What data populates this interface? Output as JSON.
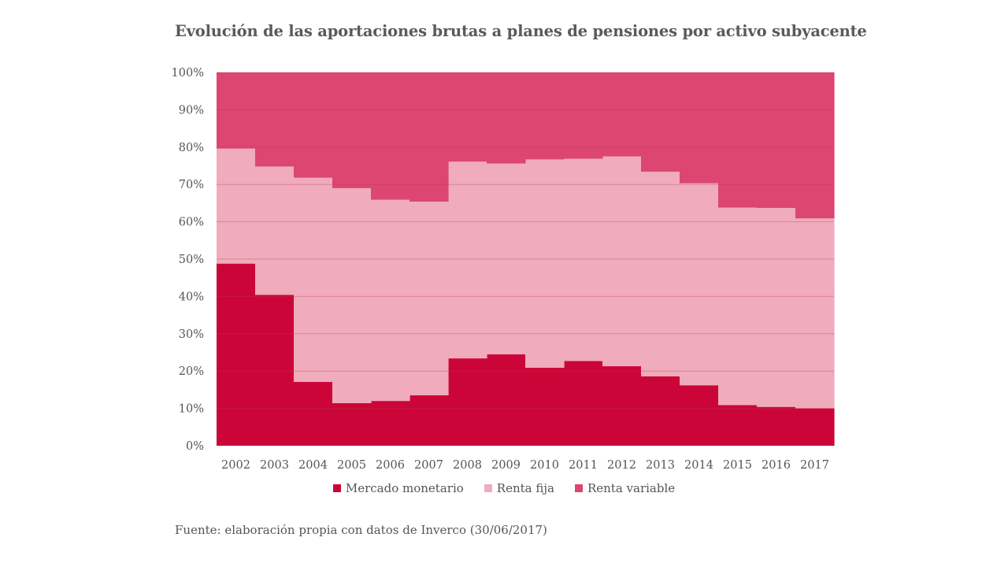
{
  "chart_data": {
    "type": "area",
    "stacked": "percent",
    "step": true,
    "title": "Evolución de las aportaciones brutas a planes de pensiones por activo subyacente",
    "categories": [
      "2002",
      "2003",
      "2004",
      "2005",
      "2006",
      "2007",
      "2008",
      "2009",
      "2010",
      "2011",
      "2012",
      "2013",
      "2014",
      "2015",
      "2016",
      "2017"
    ],
    "ylim": [
      0,
      100
    ],
    "yticks": [
      "0%",
      "10%",
      "20%",
      "30%",
      "40%",
      "50%",
      "60%",
      "70%",
      "80%",
      "90%",
      "100%"
    ],
    "grid": true,
    "legend_position": "bottom",
    "series": [
      {
        "name": "Mercado monetario",
        "color": "#cc0538",
        "values": [
          48.8,
          40.4,
          17.1,
          11.4,
          12.0,
          13.5,
          23.4,
          24.5,
          20.9,
          22.7,
          21.3,
          18.6,
          16.2,
          10.9,
          10.4,
          10.0
        ]
      },
      {
        "name": "Renta fija",
        "color": "#f0abbc",
        "values": [
          30.8,
          34.4,
          54.7,
          57.6,
          53.9,
          51.9,
          52.7,
          51.1,
          55.8,
          54.2,
          56.2,
          54.8,
          54.1,
          52.9,
          53.3,
          50.9
        ]
      },
      {
        "name": "Renta variable",
        "color": "#dc4671",
        "values": [
          20.4,
          25.2,
          28.2,
          31.0,
          34.1,
          34.6,
          23.9,
          24.4,
          23.3,
          23.1,
          22.5,
          26.6,
          29.7,
          36.2,
          36.3,
          39.1
        ]
      }
    ]
  },
  "source": "Fuente: elaboración propia con datos de Inverco (30/06/2017)"
}
